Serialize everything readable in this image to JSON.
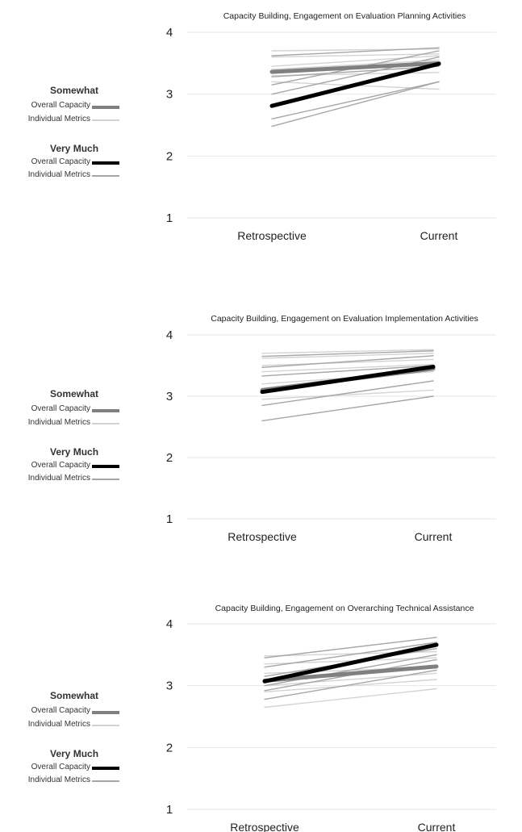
{
  "colors": {
    "somewhat_overall": "#808080",
    "somewhat_individual": "#d3d3d3",
    "verymuch_overall": "#000000",
    "verymuch_individual": "#a6a6a6",
    "grid": "#e6e6e6"
  },
  "legend": {
    "somewhat_heading": "Somewhat",
    "very_much_heading": "Very Much",
    "overall_label": "Overall Capacity",
    "individual_label": "Individual Metrics"
  },
  "chart_data": [
    {
      "type": "line",
      "title": "Capacity Building, Engagement on Evaluation Planning Activities",
      "categories": [
        "Retrospective",
        "Current"
      ],
      "yticks": [
        "1",
        "2",
        "3",
        "4"
      ],
      "ylim": [
        1,
        4
      ],
      "grid": true,
      "legend_position": "left",
      "series": [
        {
          "role": "somewhat_individual",
          "values": [
            3.7,
            3.73
          ]
        },
        {
          "role": "somewhat_individual",
          "values": [
            3.6,
            3.65
          ]
        },
        {
          "role": "somewhat_individual",
          "values": [
            3.45,
            3.62
          ]
        },
        {
          "role": "somewhat_individual",
          "values": [
            3.4,
            3.55
          ]
        },
        {
          "role": "somewhat_individual",
          "values": [
            3.3,
            3.35
          ]
        },
        {
          "role": "somewhat_individual",
          "values": [
            3.2,
            3.08
          ]
        },
        {
          "role": "verymuch_individual",
          "values": [
            3.62,
            3.75
          ]
        },
        {
          "role": "verymuch_individual",
          "values": [
            3.28,
            3.45
          ]
        },
        {
          "role": "verymuch_individual",
          "values": [
            3.15,
            3.7
          ]
        },
        {
          "role": "verymuch_individual",
          "values": [
            3.0,
            3.6
          ]
        },
        {
          "role": "verymuch_individual",
          "values": [
            2.8,
            3.5
          ]
        },
        {
          "role": "verymuch_individual",
          "values": [
            2.6,
            3.2
          ]
        },
        {
          "role": "verymuch_individual",
          "values": [
            2.48,
            3.2
          ]
        },
        {
          "role": "somewhat_overall",
          "values": [
            3.36,
            3.5
          ]
        },
        {
          "role": "verymuch_overall",
          "values": [
            2.81,
            3.49
          ]
        }
      ]
    },
    {
      "type": "line",
      "title": "Capacity Building, Engagement on Evaluation Implementation Activities",
      "categories": [
        "Retrospective",
        "Current"
      ],
      "yticks": [
        "1",
        "2",
        "3",
        "4"
      ],
      "ylim": [
        1,
        4
      ],
      "grid": true,
      "legend_position": "left",
      "series": [
        {
          "role": "somewhat_individual",
          "values": [
            3.7,
            3.76
          ]
        },
        {
          "role": "somewhat_individual",
          "values": [
            3.62,
            3.7
          ]
        },
        {
          "role": "somewhat_individual",
          "values": [
            3.5,
            3.6
          ]
        },
        {
          "role": "somewhat_individual",
          "values": [
            3.4,
            3.52
          ]
        },
        {
          "role": "somewhat_individual",
          "values": [
            3.2,
            3.4
          ]
        },
        {
          "role": "somewhat_individual",
          "values": [
            2.95,
            3.1
          ]
        },
        {
          "role": "verymuch_individual",
          "values": [
            3.65,
            3.74
          ]
        },
        {
          "role": "verymuch_individual",
          "values": [
            3.47,
            3.66
          ]
        },
        {
          "role": "verymuch_individual",
          "values": [
            3.33,
            3.5
          ]
        },
        {
          "role": "verymuch_individual",
          "values": [
            3.12,
            3.45
          ]
        },
        {
          "role": "verymuch_individual",
          "values": [
            2.85,
            3.25
          ]
        },
        {
          "role": "verymuch_individual",
          "values": [
            2.6,
            3.0
          ]
        },
        {
          "role": "somewhat_overall",
          "values": [
            3.1,
            3.45
          ]
        },
        {
          "role": "verymuch_overall",
          "values": [
            3.07,
            3.48
          ]
        }
      ]
    },
    {
      "type": "line",
      "title": "Capacity Building, Engagement on Overarching Technical Assistance",
      "categories": [
        "Retrospective",
        "Current"
      ],
      "yticks": [
        "1",
        "2",
        "3",
        "4"
      ],
      "ylim": [
        1,
        4
      ],
      "grid": true,
      "legend_position": "left",
      "series": [
        {
          "role": "somewhat_individual",
          "values": [
            3.48,
            3.55
          ]
        },
        {
          "role": "somewhat_individual",
          "values": [
            3.35,
            3.45
          ]
        },
        {
          "role": "somewhat_individual",
          "values": [
            3.2,
            3.3
          ]
        },
        {
          "role": "somewhat_individual",
          "values": [
            3.0,
            3.2
          ]
        },
        {
          "role": "somewhat_individual",
          "values": [
            2.9,
            3.1
          ]
        },
        {
          "role": "somewhat_individual",
          "values": [
            2.65,
            2.95
          ]
        },
        {
          "role": "verymuch_individual",
          "values": [
            3.45,
            3.78
          ]
        },
        {
          "role": "verymuch_individual",
          "values": [
            3.3,
            3.7
          ]
        },
        {
          "role": "verymuch_individual",
          "values": [
            3.15,
            3.6
          ]
        },
        {
          "role": "verymuch_individual",
          "values": [
            3.0,
            3.5
          ]
        },
        {
          "role": "verymuch_individual",
          "values": [
            2.92,
            3.42
          ]
        },
        {
          "role": "verymuch_individual",
          "values": [
            2.78,
            3.25
          ]
        },
        {
          "role": "somewhat_overall",
          "values": [
            3.08,
            3.31
          ]
        },
        {
          "role": "verymuch_overall",
          "values": [
            3.07,
            3.66
          ]
        }
      ]
    }
  ]
}
